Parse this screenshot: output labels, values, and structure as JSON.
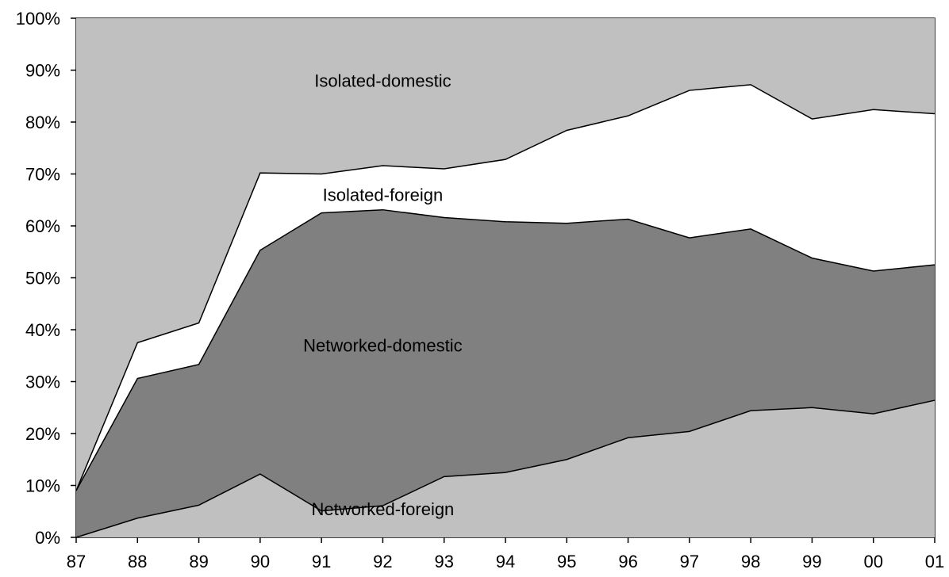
{
  "chart_data": {
    "type": "area",
    "stacked": true,
    "percent": true,
    "categories": [
      "87",
      "88",
      "89",
      "90",
      "91",
      "92",
      "93",
      "94",
      "95",
      "96",
      "97",
      "98",
      "99",
      "00",
      "01"
    ],
    "ylim": [
      0,
      100
    ],
    "yticks": [
      "0%",
      "10%",
      "20%",
      "30%",
      "40%",
      "50%",
      "60%",
      "70%",
      "80%",
      "90%",
      "100%"
    ],
    "series": [
      {
        "name": "Networked-foreign",
        "values": [
          0,
          3.7,
          6.2,
          12.2,
          5.1,
          6.1,
          11.7,
          12.5,
          15.0,
          19.2,
          20.4,
          24.4,
          25.0,
          23.8,
          26.4
        ],
        "color": "#c0c0c0"
      },
      {
        "name": "Networked-domestic",
        "values": [
          9.0,
          26.9,
          27.1,
          43.1,
          57.4,
          57.0,
          49.9,
          48.3,
          45.5,
          42.1,
          37.3,
          35.0,
          28.8,
          27.5,
          26.1
        ],
        "color": "#808080"
      },
      {
        "name": "Isolated-foreign",
        "values": [
          0,
          6.9,
          8.0,
          14.9,
          7.5,
          8.5,
          9.4,
          12.0,
          17.9,
          19.9,
          28.4,
          27.8,
          26.8,
          31.1,
          29.1
        ],
        "color": "#ffffff"
      },
      {
        "name": "Isolated-domestic",
        "values": [
          91.0,
          62.5,
          58.7,
          29.8,
          30.0,
          28.4,
          29.0,
          27.2,
          21.6,
          18.8,
          13.9,
          12.8,
          19.4,
          17.6,
          18.4
        ],
        "color": "#c0c0c0"
      }
    ],
    "labels": [
      {
        "text": "Isolated-domestic",
        "at": [
          "92",
          88
        ]
      },
      {
        "text": "Isolated-foreign",
        "at": [
          "92",
          66
        ]
      },
      {
        "text": "Networked-domestic",
        "at": [
          "92",
          37
        ]
      },
      {
        "text": "Networked-foreign",
        "at": [
          "92",
          5.5
        ]
      }
    ],
    "grid": false,
    "legend": "none"
  }
}
